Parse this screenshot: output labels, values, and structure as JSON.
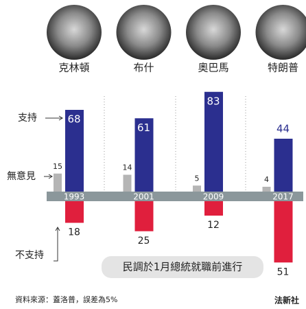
{
  "chart_data": {
    "type": "bar",
    "presidents": [
      "克林頓",
      "布什",
      "奧巴馬",
      "特朗普"
    ],
    "categories": [
      "1993",
      "2001",
      "2009",
      "2017"
    ],
    "series": [
      {
        "name": "支持",
        "color": "#2b2f8f",
        "values": [
          68,
          61,
          83,
          44
        ]
      },
      {
        "name": "無意見",
        "color": "#b5b5b5",
        "values": [
          15,
          14,
          5,
          4
        ]
      },
      {
        "name": "不支持",
        "color": "#e01f3d",
        "values": [
          18,
          25,
          12,
          51
        ]
      }
    ],
    "annotation": "民調於1月總統就職前進行",
    "source": "資料來源：蓋洛普，誤差為5%",
    "credit": "法新社"
  }
}
